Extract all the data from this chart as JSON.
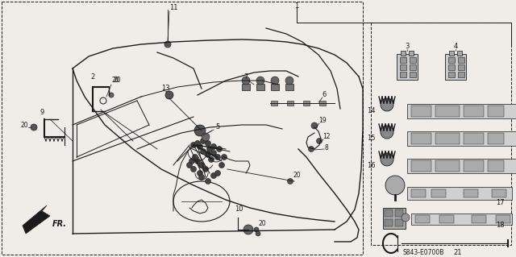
{
  "bg_color": "#f0ede8",
  "line_color": "#1a1a1a",
  "catalog_num": "S843-E0700B",
  "fig_w": 6.4,
  "fig_h": 3.19,
  "dpi": 100
}
